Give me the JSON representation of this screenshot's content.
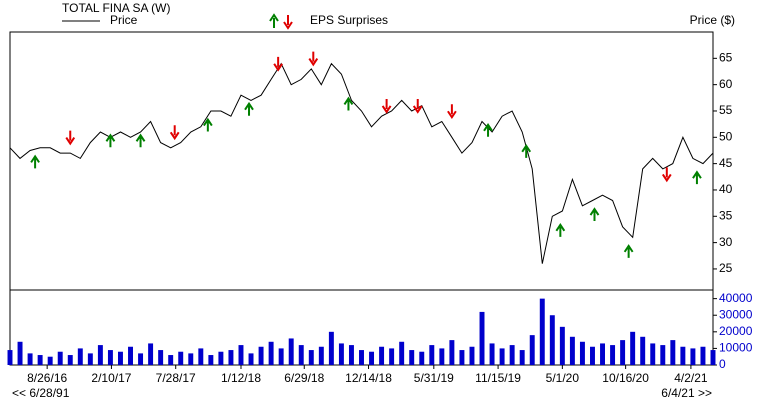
{
  "chart_data": {
    "type": "stock",
    "title": "TOTAL FINA SA (W)",
    "y_label": "Price ($)",
    "price": {
      "name": "Price",
      "color": "#000000",
      "values": [
        48,
        46,
        47.5,
        48,
        48,
        47,
        47,
        46,
        49,
        51,
        50,
        51,
        50,
        51,
        53,
        49,
        48,
        49,
        51,
        52,
        55,
        55,
        54,
        58,
        57,
        58,
        61,
        64,
        60,
        61,
        63,
        60,
        64,
        62,
        57,
        55,
        52,
        54,
        55,
        57,
        55,
        56,
        52,
        53,
        50,
        47,
        49,
        53,
        51,
        54,
        55,
        51,
        44,
        26,
        35,
        36,
        42,
        37,
        38,
        39,
        38,
        33,
        31,
        44,
        46,
        44,
        45,
        50,
        46,
        45,
        47
      ]
    },
    "eps": {
      "name": "EPS Surprises",
      "x": [
        2.5,
        6.0,
        10.0,
        13.0,
        16.4,
        19.7,
        23.8,
        26.7,
        30.2,
        33.7,
        37.5,
        40.6,
        44.0,
        47.6,
        51.4,
        54.8,
        58.2,
        61.6,
        65.4,
        68.4
      ],
      "y": [
        46,
        49,
        50,
        50,
        50,
        53,
        56,
        63,
        64,
        57,
        55,
        55,
        54,
        52,
        48,
        33,
        36,
        29,
        42,
        43
      ],
      "direction": [
        "up",
        "down",
        "up",
        "up",
        "down",
        "up",
        "up",
        "down",
        "down",
        "up",
        "down",
        "down",
        "down",
        "up",
        "up",
        "up",
        "up",
        "up",
        "down",
        "up"
      ],
      "up_color": "#008000",
      "down_color": "#e00000"
    },
    "volume": {
      "color": "#0000cc",
      "values": [
        9000,
        14000,
        7000,
        6000,
        5000,
        8000,
        6000,
        10000,
        7000,
        12000,
        9000,
        8000,
        11000,
        7000,
        13000,
        9000,
        6000,
        8000,
        7000,
        10000,
        6000,
        8000,
        9000,
        12000,
        7000,
        11000,
        14000,
        10000,
        16000,
        12000,
        9000,
        11000,
        20000,
        13000,
        12000,
        9000,
        8000,
        11000,
        10000,
        14000,
        9000,
        8000,
        12000,
        10000,
        15000,
        9000,
        11000,
        32000,
        13000,
        10000,
        12000,
        9000,
        18000,
        40000,
        30000,
        23000,
        17000,
        14000,
        11000,
        13000,
        12000,
        15000,
        20000,
        17000,
        13000,
        12000,
        15000,
        11000,
        10000,
        11000,
        9000
      ]
    },
    "xlim": [
      0,
      70
    ],
    "xticks": [
      {
        "value": 3.7,
        "label": "8/26/16"
      },
      {
        "value": 10.1,
        "label": "2/10/17"
      },
      {
        "value": 16.5,
        "label": "7/28/17"
      },
      {
        "value": 23,
        "label": "1/12/18"
      },
      {
        "value": 29.3,
        "label": "6/29/18"
      },
      {
        "value": 35.7,
        "label": "12/14/18"
      },
      {
        "value": 42.2,
        "label": "5/31/19"
      },
      {
        "value": 48.6,
        "label": "11/15/19"
      },
      {
        "value": 55,
        "label": "5/1/20"
      },
      {
        "value": 61.3,
        "label": "10/16/20"
      },
      {
        "value": 67.8,
        "label": "4/2/21"
      }
    ],
    "ylim": [
      21,
      70
    ],
    "yticks": [
      25,
      30,
      35,
      40,
      45,
      50,
      55,
      60,
      65
    ],
    "volume_ylim": [
      0,
      44000
    ],
    "volume_yticks": [
      0,
      10000,
      20000,
      30000,
      40000
    ],
    "start_label": "<< 6/28/91",
    "end_label": "6/4/21 >>"
  }
}
